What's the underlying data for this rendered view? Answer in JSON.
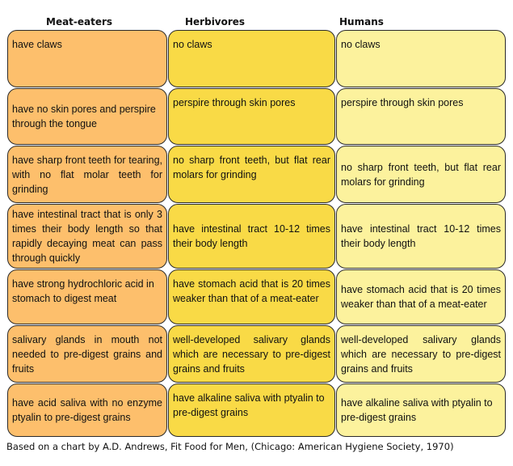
{
  "headers": [
    "Meat-eaters",
    "Herbivores",
    "Humans"
  ],
  "rows": [
    [
      "have claws",
      "no claws",
      "no claws"
    ],
    [
      "have no skin pores and perspire through the tongue",
      "perspire through skin pores",
      "perspire through skin pores"
    ],
    [
      "have sharp front teeth for tearing, with no flat molar teeth for grinding",
      "no sharp front teeth, but flat rear molars for grinding",
      "no sharp front teeth, but flat rear molars for grinding"
    ],
    [
      "have intestinal tract that is only 3 times their body length so that rapidly decaying meat can pass through quickly",
      "have intestinal tract 10-12 times their body length",
      "have intestinal tract 10-12 times their body length"
    ],
    [
      "have strong hydrochloric acid in stomach to digest meat",
      "have stomach acid that is 20 times weaker than that of a meat-eater",
      "have stomach acid that is 20 times weaker than that of a meat-eater"
    ],
    [
      "salivary glands in mouth not needed to pre-digest grains and fruits",
      "well-developed salivary glands which are necessary to pre-digest grains and fruits",
      "well-developed salivary glands which are necessary to pre-digest grains and fruits"
    ],
    [
      "have acid saliva with no enzyme ptyalin to pre-digest grains",
      "have alkaline saliva with ptyalin to pre-digest grains",
      "have alkaline saliva with ptyalin to pre-digest grains"
    ]
  ],
  "footer": "Based on a chart by A.D. Andrews, Fit Food for Men, (Chicago: American Hygiene Society, 1970)"
}
